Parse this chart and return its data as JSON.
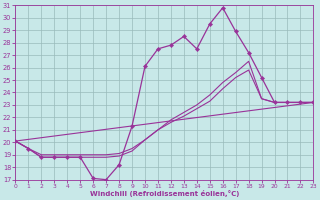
{
  "xlabel": "Windchill (Refroidissement éolien,°C)",
  "xlim": [
    0,
    23
  ],
  "ylim": [
    17,
    31
  ],
  "yticks": [
    17,
    18,
    19,
    20,
    21,
    22,
    23,
    24,
    25,
    26,
    27,
    28,
    29,
    30,
    31
  ],
  "xticks": [
    0,
    1,
    2,
    3,
    4,
    5,
    6,
    7,
    8,
    9,
    10,
    11,
    12,
    13,
    14,
    15,
    16,
    17,
    18,
    19,
    20,
    21,
    22,
    23
  ],
  "bg_color": "#c8e8e8",
  "line_color": "#993399",
  "grid_color": "#99bbbb",
  "line_main": {
    "x": [
      0,
      1,
      2,
      3,
      4,
      5,
      6,
      7,
      8,
      9,
      10,
      11,
      12,
      13,
      14,
      15,
      16,
      17,
      18,
      19,
      20,
      21,
      22,
      23
    ],
    "y": [
      20.1,
      19.5,
      18.8,
      18.8,
      18.8,
      18.8,
      17.1,
      17.0,
      18.2,
      21.3,
      26.1,
      27.5,
      27.8,
      28.5,
      27.5,
      29.5,
      30.8,
      28.9,
      27.2,
      25.2,
      23.2,
      23.2,
      23.2,
      23.2
    ],
    "linewidth": 0.9,
    "marker": "D",
    "markersize": 2.2
  },
  "line_upper": {
    "x": [
      0,
      1,
      2,
      3,
      4,
      5,
      6,
      7,
      8,
      9,
      10,
      11,
      12,
      13,
      14,
      15,
      16,
      17,
      18,
      19,
      20,
      21,
      22,
      23
    ],
    "y": [
      20.1,
      19.5,
      18.8,
      18.8,
      18.8,
      18.8,
      18.8,
      18.8,
      18.9,
      19.3,
      20.2,
      21.0,
      21.8,
      22.4,
      23.0,
      23.8,
      24.8,
      25.6,
      26.5,
      23.5,
      23.2,
      23.2,
      23.2,
      23.2
    ],
    "linewidth": 0.8
  },
  "line_middle": {
    "x": [
      0,
      1,
      2,
      3,
      4,
      5,
      6,
      7,
      8,
      9,
      10,
      11,
      12,
      13,
      14,
      15,
      16,
      17,
      18,
      19,
      20,
      21,
      22,
      23
    ],
    "y": [
      20.1,
      19.5,
      19.0,
      19.0,
      19.0,
      19.0,
      19.0,
      19.0,
      19.1,
      19.5,
      20.2,
      21.0,
      21.6,
      22.1,
      22.7,
      23.3,
      24.3,
      25.2,
      25.8,
      23.5,
      23.2,
      23.2,
      23.2,
      23.2
    ],
    "linewidth": 0.8
  },
  "line_straight": {
    "x": [
      0,
      23
    ],
    "y": [
      20.1,
      23.2
    ],
    "linewidth": 0.8
  }
}
